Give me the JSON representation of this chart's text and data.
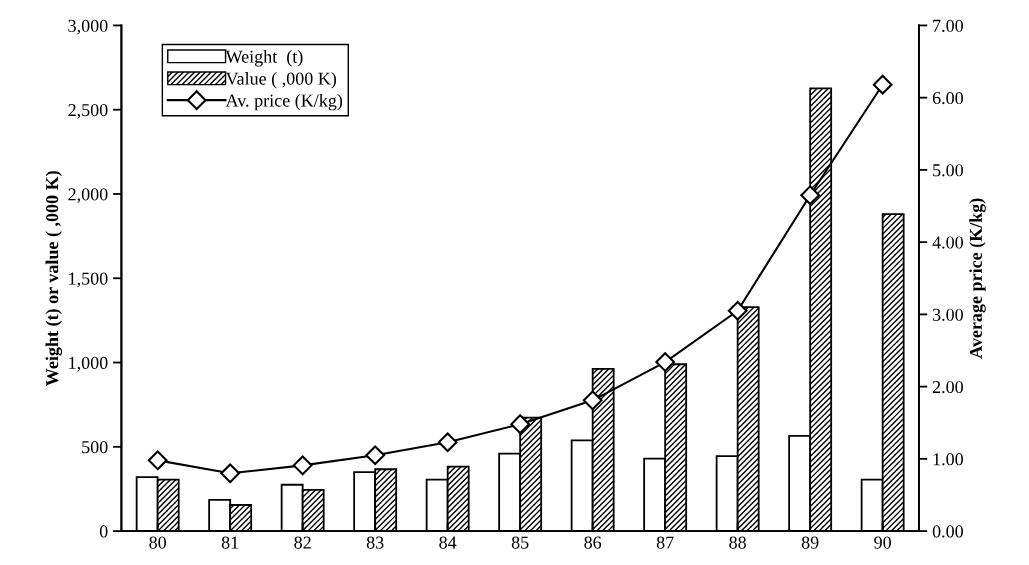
{
  "chart_data": {
    "type": "bar",
    "ylabel": "Weight (t) or value ( ,000 K)",
    "y2label": "Average price (K/kg)",
    "categories": [
      "80",
      "81",
      "82",
      "83",
      "84",
      "85",
      "86",
      "87",
      "88",
      "89",
      "90"
    ],
    "series": [
      {
        "name": "Weight  (t)",
        "color": "#ffffff",
        "values": [
          320,
          185,
          275,
          350,
          305,
          460,
          538,
          430,
          445,
          565,
          305
        ]
      },
      {
        "name": "Value ( ,000 K)",
        "color": "#000000",
        "values": [
          305,
          155,
          244,
          367,
          383,
          673,
          962,
          990,
          1329,
          2627,
          1881
        ]
      },
      {
        "name": "Av. price (K/kg)",
        "type": "line",
        "axis": "y2",
        "color": "#000000",
        "marker": "diamond",
        "values": [
          0.98,
          0.8,
          0.91,
          1.05,
          1.23,
          1.48,
          1.81,
          2.34,
          3.05,
          4.65,
          6.18
        ]
      }
    ],
    "ylim": [
      0,
      3000
    ],
    "yticks": [
      {
        "value": 0,
        "label": "0"
      },
      {
        "value": 500,
        "label": "500"
      },
      {
        "value": 1000,
        "label": "1,000"
      },
      {
        "value": 1500,
        "label": "1,500"
      },
      {
        "value": 2000,
        "label": "2,000"
      },
      {
        "value": 2500,
        "label": "2,500"
      },
      {
        "value": 3000,
        "label": "3,000"
      }
    ],
    "y2lim": [
      0,
      7
    ],
    "y2ticks": [
      {
        "value": 0,
        "label": "0.00"
      },
      {
        "value": 1,
        "label": "1.00"
      },
      {
        "value": 2,
        "label": "2.00"
      },
      {
        "value": 3,
        "label": "3.00"
      },
      {
        "value": 4,
        "label": "4.00"
      },
      {
        "value": 5,
        "label": "5.00"
      },
      {
        "value": 6,
        "label": "6.00"
      },
      {
        "value": 7,
        "label": "7.00"
      }
    ],
    "legend": "top left",
    "grid": false
  }
}
